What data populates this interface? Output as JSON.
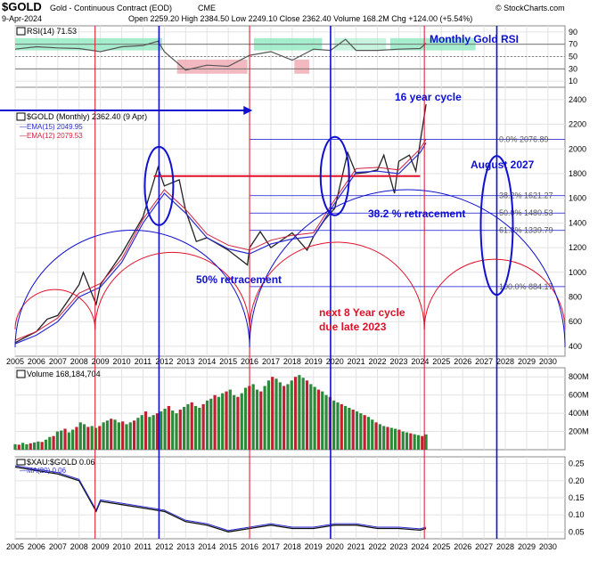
{
  "header": {
    "symbol": "$GOLD",
    "name": "Gold - Continuous Contract (EOD)",
    "exchange": "CME",
    "date": "9-Apr-2024",
    "quote": "Open 2259.20  High 2384.50  Low 2249.10  Close 2362.40  Volume 168.2M  Chg +124.00 (+5.54%)",
    "watermark": "© StockCharts.com"
  },
  "rsi_panel": {
    "label": "RSI(14) 71.53",
    "annotation": "Monthly Gold RSI",
    "ticks": [
      "90",
      "70",
      "50",
      "30",
      "10"
    ],
    "ylim": [
      0,
      100
    ],
    "overbought": 70,
    "oversold": 30,
    "value": 71.53
  },
  "price_panel": {
    "legend_main": "$GOLD (Monthly) 2362.40 (9 Apr)",
    "legend_ema15": "EMA(15) 2049.95",
    "legend_ema12": "EMA(12) 2079.53",
    "ticks": [
      "2400",
      "2200",
      "2000",
      "1800",
      "1600",
      "1400",
      "1200",
      "1000",
      "800",
      "600",
      "400"
    ],
    "ylim": [
      320,
      2500
    ],
    "fib_labels": [
      "0.0% 2076.89",
      "38.2% 1621.27",
      "50.0% 1480.53",
      "61.8% 1339.79",
      "100.0% 884.17"
    ],
    "annotations": {
      "cycle16": "16 year cycle",
      "august2027": "August 2027",
      "retr382": "38.2 % retracement",
      "retr50": "50% retracement",
      "next8a": "next 8 Year cycle",
      "next8b": "due late 2023"
    }
  },
  "volume_panel": {
    "label": "Volume 168,184,704",
    "ticks": [
      "800M",
      "600M",
      "400M",
      "200M"
    ],
    "ylim": [
      0,
      900
    ]
  },
  "ratio_panel": {
    "label": "$XAU:$GOLD 0.06",
    "ma_label": "MA(20) 0.06",
    "ticks": [
      "0.25",
      "0.20",
      "0.15",
      "0.10",
      "0.05"
    ],
    "ylim": [
      0.03,
      0.27
    ]
  },
  "x_axis_years": [
    "2005",
    "2006",
    "2007",
    "2008",
    "2009",
    "2010",
    "2011",
    "2012",
    "2013",
    "2014",
    "2015",
    "2016",
    "2017",
    "2018",
    "2019",
    "2020",
    "2021",
    "2022",
    "2023",
    "2024",
    "2025",
    "2026",
    "2027",
    "2028",
    "2029",
    "2030"
  ],
  "colors": {
    "blue_annot": "#1010d0",
    "red_annot": "#e0102a",
    "price_line": "#222222",
    "ema15": "#2a2ad0",
    "ema12": "#d02040",
    "rsi_band": "#8fe8c0",
    "rsi_low_band": "#f0a8b0",
    "vol_up": "#2a8a3a",
    "vol_down": "#c02030"
  },
  "chart_data": {
    "type": "line",
    "title": "$GOLD Gold - Continuous Contract (EOD) CME",
    "x_unit": "year",
    "price_series": {
      "name": "$GOLD (Monthly)",
      "x": [
        2005,
        2006,
        2006.5,
        2007,
        2008,
        2008.2,
        2008.8,
        2009,
        2010,
        2011,
        2011.7,
        2012,
        2012.7,
        2013,
        2013.5,
        2014,
        2015,
        2015.9,
        2016,
        2016.5,
        2017,
        2018,
        2018.7,
        2019,
        2019.5,
        2020,
        2020.6,
        2021,
        2021.5,
        2022,
        2022.3,
        2022.8,
        2023,
        2023.5,
        2023.8,
        2024,
        2024.28
      ],
      "values": [
        430,
        520,
        620,
        650,
        900,
        1000,
        740,
        900,
        1150,
        1450,
        1850,
        1700,
        1750,
        1500,
        1250,
        1280,
        1180,
        1060,
        1200,
        1330,
        1200,
        1320,
        1180,
        1290,
        1420,
        1520,
        1970,
        1800,
        1810,
        1830,
        1950,
        1640,
        1900,
        1950,
        1820,
        2050,
        2362
      ]
    },
    "ema15_series": {
      "name": "EMA(15)",
      "x": [
        2005,
        2006,
        2007,
        2008,
        2009,
        2010,
        2011,
        2012,
        2013,
        2014,
        2015,
        2016,
        2017,
        2018,
        2019,
        2020,
        2021,
        2022,
        2023,
        2024,
        2024.28
      ],
      "values": [
        420,
        490,
        600,
        800,
        880,
        1080,
        1400,
        1640,
        1480,
        1280,
        1190,
        1150,
        1230,
        1270,
        1290,
        1560,
        1810,
        1820,
        1800,
        1970,
        2050
      ]
    },
    "rsi_series": {
      "name": "RSI(14)",
      "x": [
        2005,
        2006,
        2007,
        2008,
        2009,
        2010,
        2011,
        2011.7,
        2012,
        2013,
        2014,
        2015,
        2016,
        2017,
        2018,
        2019,
        2019.8,
        2020.5,
        2021,
        2022,
        2023,
        2024,
        2024.28
      ],
      "values": [
        62,
        66,
        64,
        63,
        58,
        66,
        68,
        75,
        58,
        28,
        36,
        34,
        52,
        58,
        44,
        62,
        60,
        78,
        60,
        60,
        62,
        63,
        71.53
      ]
    },
    "volume_bars": [
      60,
      55,
      75,
      60,
      70,
      80,
      90,
      85,
      110,
      140,
      150,
      200,
      210,
      230,
      190,
      220,
      250,
      300,
      280,
      250,
      260,
      240,
      260,
      300,
      320,
      340,
      330,
      300,
      310,
      280,
      300,
      320,
      350,
      380,
      420,
      360,
      380,
      400,
      420,
      450,
      480,
      430,
      400,
      440,
      470,
      500,
      520,
      480,
      460,
      500,
      540,
      560,
      600,
      580,
      620,
      640,
      660,
      600,
      580,
      620,
      680,
      700,
      720,
      660,
      640,
      700,
      760,
      800,
      780,
      740,
      700,
      720,
      760,
      800,
      820,
      790,
      760,
      720,
      690,
      660,
      640,
      600,
      580,
      540,
      520,
      500,
      480,
      460,
      440,
      420,
      400,
      380,
      360,
      330,
      300,
      280,
      260,
      250,
      240,
      230,
      220,
      200,
      190,
      180,
      170,
      160,
      150,
      168
    ],
    "ratio_series": {
      "name": "$XAU:$GOLD",
      "x": [
        2005,
        2006,
        2007,
        2008,
        2008.8,
        2009,
        2010,
        2011,
        2012,
        2013,
        2014,
        2015,
        2016,
        2017,
        2018,
        2019,
        2020,
        2021,
        2022,
        2023,
        2024,
        2024.28
      ],
      "values": [
        0.24,
        0.23,
        0.22,
        0.2,
        0.11,
        0.14,
        0.13,
        0.12,
        0.11,
        0.08,
        0.07,
        0.05,
        0.06,
        0.07,
        0.06,
        0.06,
        0.07,
        0.07,
        0.06,
        0.06,
        0.055,
        0.06
      ]
    },
    "fibonacci": {
      "0.0%": 2076.89,
      "38.2%": 1621.27,
      "50.0%": 1480.53,
      "61.8%": 1339.79,
      "100.0%": 884.17
    },
    "cycle_lines": [
      2008.75,
      2016.0,
      2024.2
    ],
    "blue_verticals": [
      2011.75,
      2019.8,
      2027.6
    ],
    "xlim": [
      2005,
      2030.8
    ]
  }
}
